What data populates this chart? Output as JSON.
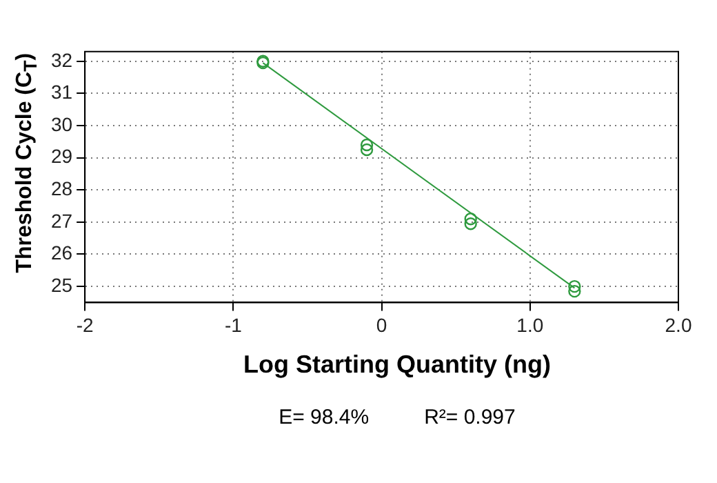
{
  "chart_data": {
    "type": "scatter",
    "xlabel": "Log Starting Quantity (ng)",
    "ylabel": "Threshold Cycle (C$_{T}$)",
    "annotations": [
      "E= 98.4%",
      "R²= 0.997"
    ],
    "series": [
      {
        "marker": "circle",
        "color": "#2e9a3e",
        "x": [
          -0.8,
          -0.8,
          -0.1,
          -0.1,
          0.6,
          0.6,
          1.3,
          1.3
        ],
        "values": [
          32.0,
          31.95,
          29.4,
          29.25,
          27.1,
          26.95,
          25.0,
          24.85
        ]
      },
      {
        "type": "line",
        "marker": "none",
        "color": "#2e9a3e",
        "x": [
          -0.8,
          1.3
        ],
        "values": [
          31.95,
          24.95
        ]
      }
    ],
    "xlim": [
      -2,
      2
    ],
    "ylim": [
      24.5,
      32.3
    ],
    "xticks": [
      -2,
      -1,
      0,
      {
        "value": 1,
        "label": "1.0"
      },
      {
        "value": 2,
        "label": "2.0"
      }
    ],
    "yticks": [
      25,
      26,
      27,
      28,
      29,
      30,
      31,
      32
    ],
    "grid": true,
    "legend": false
  }
}
